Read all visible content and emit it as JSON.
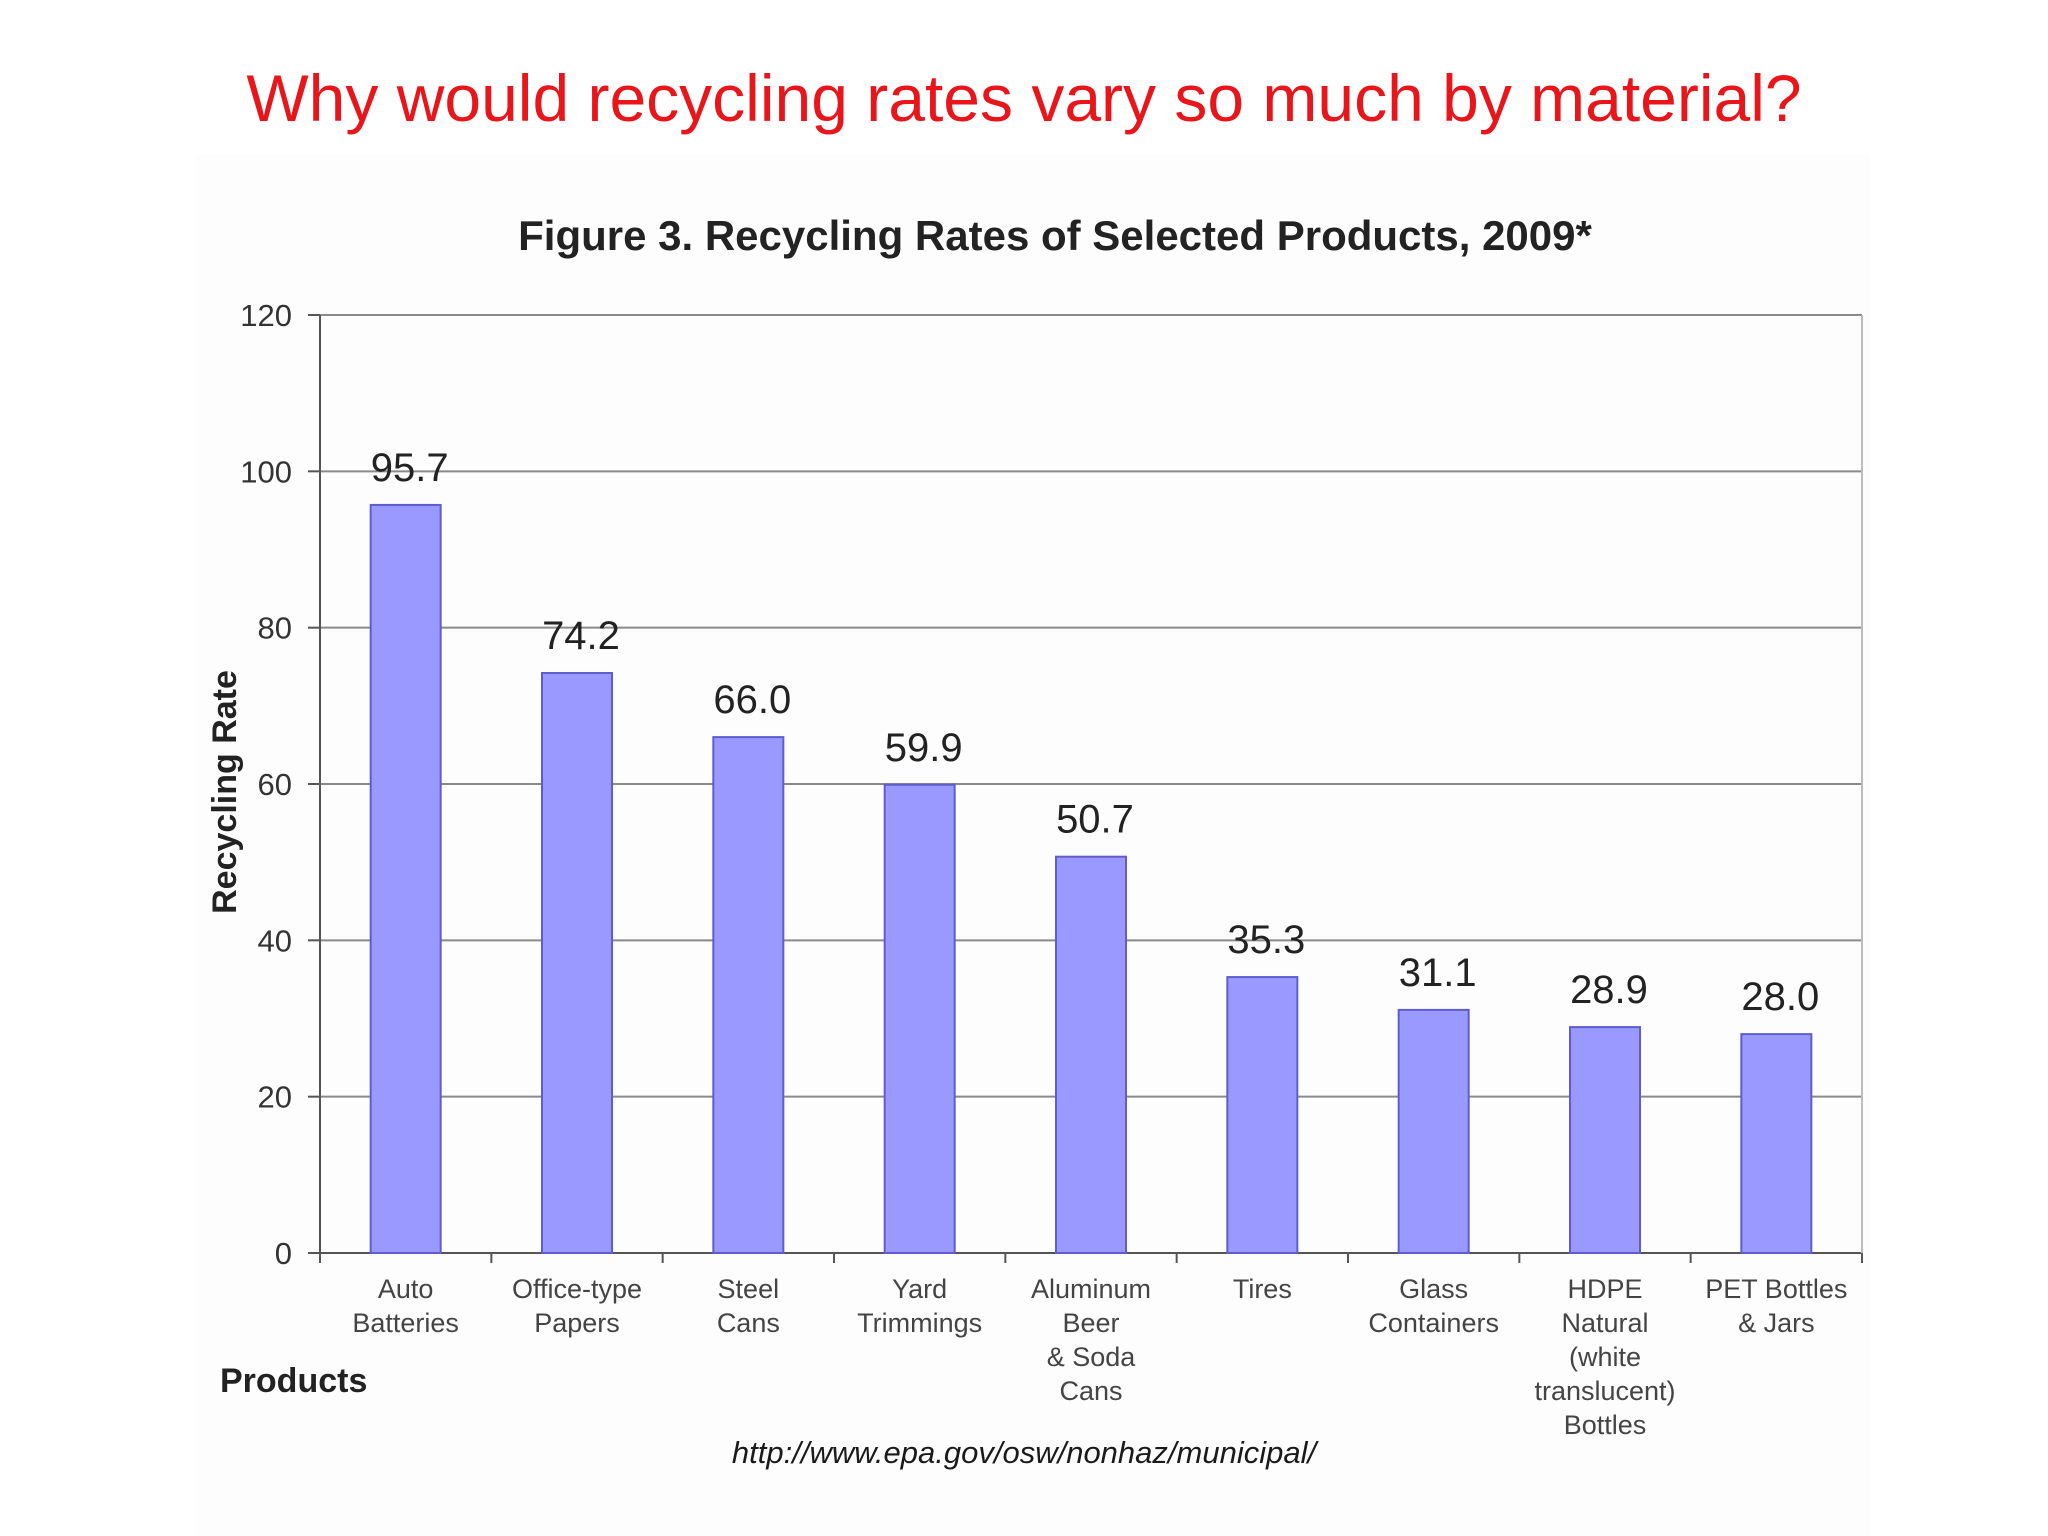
{
  "slide": {
    "title": "Why would recycling rates vary so much by material?",
    "source": "http://www.epa.gov/osw/nonhaz/municipal/"
  },
  "colors": {
    "title": "#e8161b",
    "bar": "#9999ff",
    "bar_edge": "#5d5dcf",
    "grid": "#8a8a8a"
  },
  "chart_data": {
    "type": "bar",
    "title": "Figure 3. Recycling Rates of Selected Products, 2009*",
    "xlabel": "Products",
    "ylabel": "Recycling Rate",
    "ylim": [
      0,
      120
    ],
    "yticks": [
      0,
      20,
      40,
      60,
      80,
      100,
      120
    ],
    "grid": true,
    "categories": [
      [
        "Auto",
        "Batteries"
      ],
      [
        "Office-type",
        "Papers"
      ],
      [
        "Steel",
        "Cans"
      ],
      [
        "Yard",
        "Trimmings"
      ],
      [
        "Aluminum",
        "Beer",
        "& Soda",
        "Cans"
      ],
      [
        "Tires"
      ],
      [
        "Glass",
        "Containers"
      ],
      [
        "HDPE",
        "Natural",
        "(white",
        "translucent)",
        "Bottles"
      ],
      [
        "PET Bottles",
        "& Jars"
      ]
    ],
    "values": [
      95.7,
      74.2,
      66.0,
      59.9,
      50.7,
      35.3,
      31.1,
      28.9,
      28.0
    ],
    "value_labels": [
      "95.7",
      "74.2",
      "66.0",
      "59.9",
      "50.7",
      "35.3",
      "31.1",
      "28.9",
      "28.0"
    ]
  }
}
